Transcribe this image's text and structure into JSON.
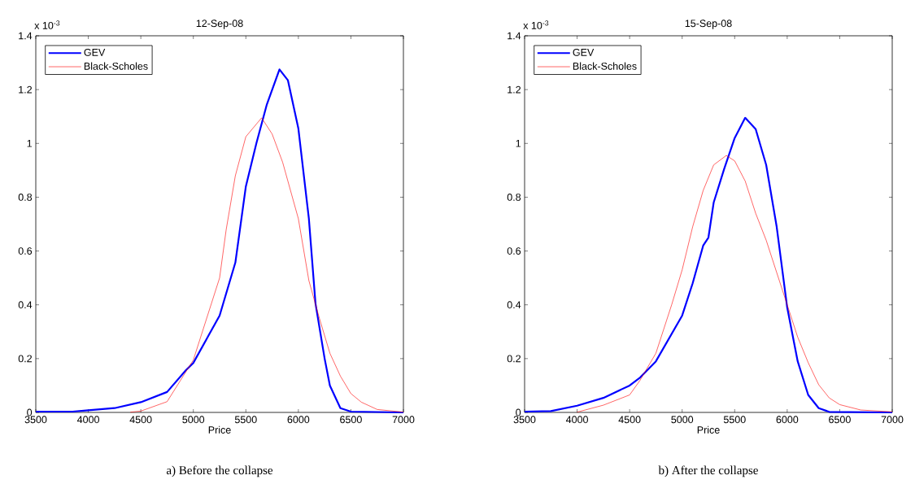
{
  "chart_data": [
    {
      "type": "line",
      "title": "12-Sep-08",
      "xlabel": "Price",
      "annotations": [
        "x 10$^{-3}$",
        "a) Before the collapse"
      ],
      "xlim": [
        3500,
        7000
      ],
      "ylim": [
        0,
        1.4
      ],
      "xticks": [
        3500,
        4000,
        4500,
        5000,
        5500,
        6000,
        6500,
        7000
      ],
      "yticks": [
        0,
        0.2,
        0.4,
        0.6,
        0.8,
        1,
        1.2,
        1.4
      ],
      "legend": "top left",
      "line_style": "solid",
      "series": [
        {
          "name": "GEV",
          "color": "#0000ff",
          "x": [
            3500,
            3850,
            4000,
            4250,
            4500,
            4750,
            4930,
            5000,
            5250,
            5400,
            5500,
            5600,
            5700,
            5820,
            5900,
            6000,
            6100,
            6163,
            6250,
            6300,
            6400,
            6500,
            7000
          ],
          "values": [
            0.003,
            0.003,
            0.008,
            0.016,
            0.038,
            0.076,
            0.157,
            0.184,
            0.36,
            0.557,
            0.84,
            1.0,
            1.145,
            1.275,
            1.235,
            1.055,
            0.72,
            0.405,
            0.2,
            0.1,
            0.016,
            0.003,
            0.0
          ]
        },
        {
          "name": "Black-Scholes",
          "color": "#ff0000",
          "x": [
            4400,
            4500,
            4750,
            5000,
            5250,
            5313,
            5400,
            5500,
            5650,
            5750,
            5850,
            6000,
            6100,
            6200,
            6300,
            6400,
            6500,
            6600,
            6750,
            7000
          ],
          "values": [
            0.001,
            0.005,
            0.04,
            0.195,
            0.5,
            0.68,
            0.88,
            1.025,
            1.095,
            1.035,
            0.93,
            0.72,
            0.49,
            0.35,
            0.22,
            0.135,
            0.07,
            0.038,
            0.011,
            0.001
          ]
        }
      ]
    },
    {
      "type": "line",
      "title": "15-Sep-08",
      "xlabel": "Price",
      "annotations": [
        "x 10$^{-3}$",
        "b) After the collapse"
      ],
      "xlim": [
        3500,
        7000
      ],
      "ylim": [
        0,
        1.4
      ],
      "xticks": [
        3500,
        4000,
        4500,
        5000,
        5500,
        6000,
        6500,
        7000
      ],
      "yticks": [
        0,
        0.2,
        0.4,
        0.6,
        0.8,
        1,
        1.2,
        1.4
      ],
      "legend": "top left",
      "line_style": "solid",
      "series": [
        {
          "name": "GEV",
          "color": "#0000ff",
          "x": [
            3500,
            3750,
            4000,
            4250,
            4500,
            4600,
            4750,
            5000,
            5100,
            5200,
            5250,
            5300,
            5400,
            5500,
            5600,
            5700,
            5800,
            5900,
            6000,
            6100,
            6200,
            6300,
            6400,
            7000
          ],
          "values": [
            0.003,
            0.005,
            0.025,
            0.054,
            0.1,
            0.13,
            0.19,
            0.36,
            0.48,
            0.62,
            0.65,
            0.78,
            0.905,
            1.02,
            1.095,
            1.053,
            0.92,
            0.69,
            0.39,
            0.19,
            0.065,
            0.016,
            0.002,
            0.0
          ]
        },
        {
          "name": "Black-Scholes",
          "color": "#ff0000",
          "x": [
            4000,
            4250,
            4500,
            4600,
            4750,
            4900,
            5000,
            5100,
            5200,
            5300,
            5420,
            5500,
            5600,
            5700,
            5800,
            5900,
            6000,
            6100,
            6200,
            6300,
            6400,
            6500,
            6700,
            7000
          ],
          "values": [
            0.001,
            0.027,
            0.065,
            0.12,
            0.22,
            0.4,
            0.53,
            0.69,
            0.825,
            0.92,
            0.955,
            0.935,
            0.86,
            0.74,
            0.64,
            0.52,
            0.4,
            0.28,
            0.185,
            0.103,
            0.054,
            0.029,
            0.009,
            0.002
          ]
        }
      ]
    }
  ]
}
